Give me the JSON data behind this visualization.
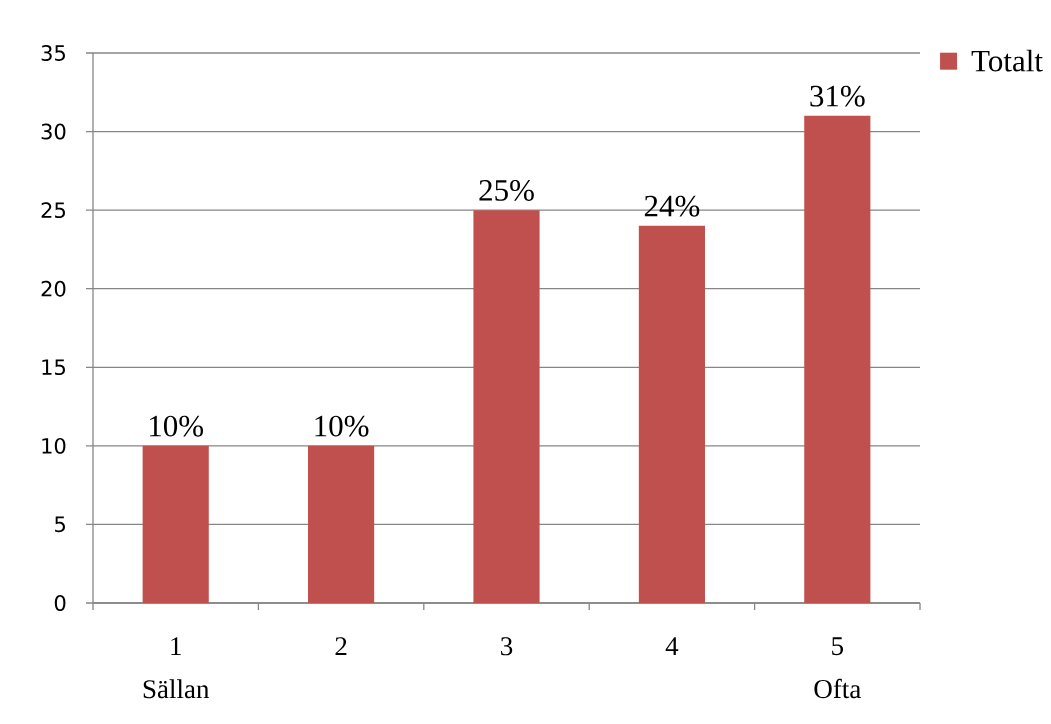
{
  "chart_data": {
    "type": "bar",
    "categories": [
      "1 Sällan",
      "2",
      "3",
      "4",
      "5 Ofta"
    ],
    "series": [
      {
        "name": "Totalt",
        "color": "#c0504d",
        "values": [
          10,
          10,
          25,
          24,
          31
        ],
        "value_labels": [
          "10%",
          "10%",
          "25%",
          "24%",
          "31%"
        ]
      }
    ],
    "ylim": [
      0,
      35
    ],
    "yticks": [
      0,
      5,
      10,
      15,
      20,
      25,
      30,
      35
    ],
    "grid": "y",
    "legend": "top right"
  }
}
